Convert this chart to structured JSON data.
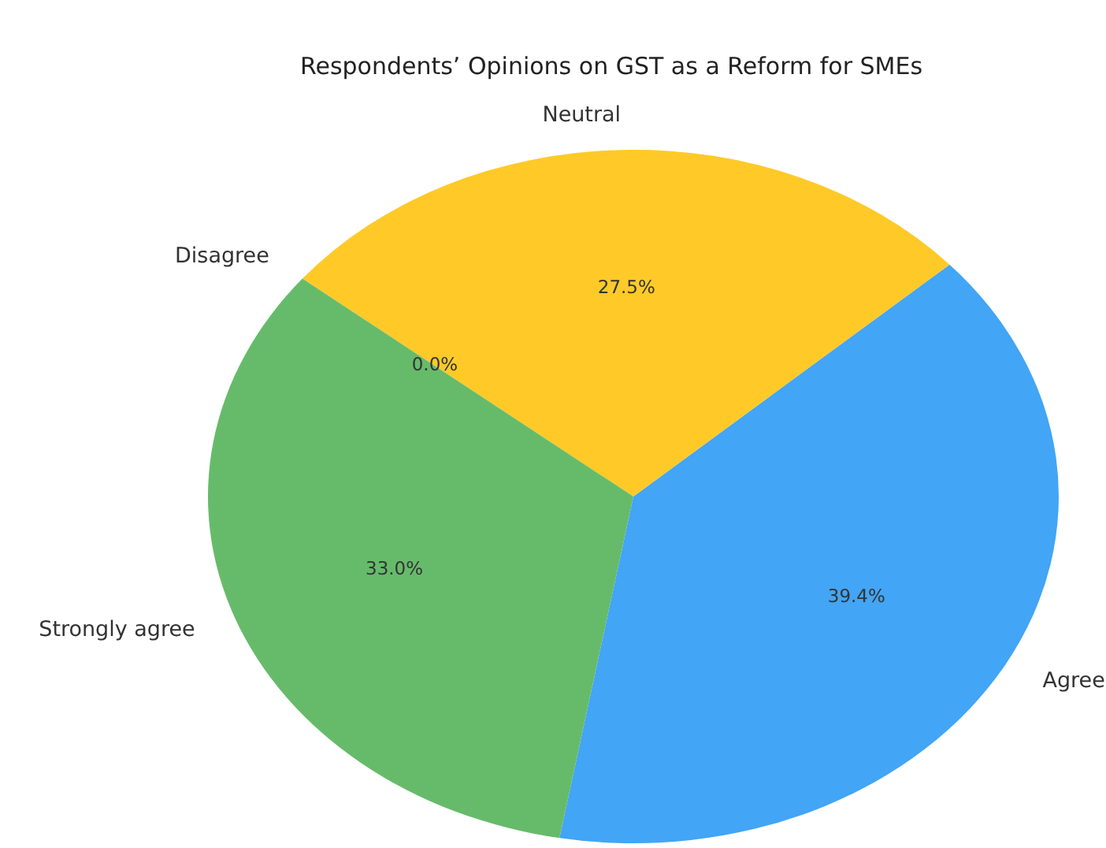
{
  "chart_data": {
    "type": "pie",
    "title": "Respondents’ Opinions on GST as a Reform for SMEs",
    "categories": [
      "Agree",
      "Neutral",
      "Disagree",
      "Strongly agree"
    ],
    "values": [
      39.4,
      27.5,
      0.0,
      33.0
    ],
    "colors": [
      "#42a5f5",
      "#ffca28",
      "#ef5350",
      "#66bb6a"
    ],
    "value_labels": [
      "39.4%",
      "27.5%",
      "0.0%",
      "33.0%"
    ]
  }
}
